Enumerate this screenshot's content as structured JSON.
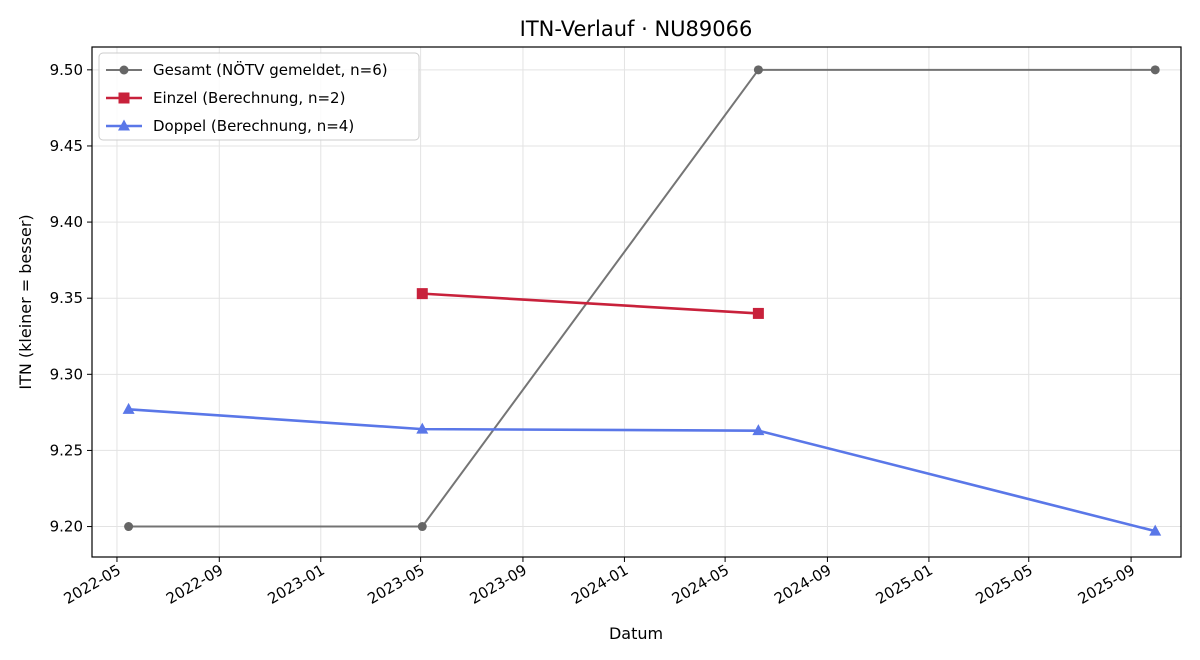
{
  "chart_data": {
    "type": "line",
    "title": "ITN-Verlauf · NU89066",
    "xlabel": "Datum",
    "ylabel": "ITN  (kleiner = besser)",
    "xlim": [
      "2022-04-01",
      "2025-10-31"
    ],
    "ylim": [
      9.18,
      9.515
    ],
    "x_ticks": [
      "2022-05",
      "2022-09",
      "2023-01",
      "2023-05",
      "2023-09",
      "2024-01",
      "2024-05",
      "2024-09",
      "2025-01",
      "2025-05",
      "2025-09"
    ],
    "y_ticks": [
      9.2,
      9.25,
      9.3,
      9.35,
      9.4,
      9.45,
      9.5
    ],
    "grid": true,
    "legend_position": "top-left",
    "series": [
      {
        "name": "Gesamt (NÖTV gemeldet, n=6)",
        "color": "#666666",
        "marker": "circle",
        "points": [
          {
            "x": "2022-05-15",
            "y": 9.2
          },
          {
            "x": "2023-05-03",
            "y": 9.2
          },
          {
            "x": "2024-06-10",
            "y": 9.5
          },
          {
            "x": "2025-09-30",
            "y": 9.5
          }
        ]
      },
      {
        "name": "Einzel (Berechnung, n=2)",
        "color": "#c8213b",
        "marker": "square",
        "points": [
          {
            "x": "2023-05-03",
            "y": 9.353
          },
          {
            "x": "2024-06-10",
            "y": 9.34
          }
        ]
      },
      {
        "name": "Doppel (Berechnung, n=4)",
        "color": "#5a77e8",
        "marker": "triangle",
        "points": [
          {
            "x": "2022-05-15",
            "y": 9.277
          },
          {
            "x": "2023-05-03",
            "y": 9.264
          },
          {
            "x": "2024-06-10",
            "y": 9.263
          },
          {
            "x": "2025-09-30",
            "y": 9.197
          }
        ]
      }
    ]
  }
}
